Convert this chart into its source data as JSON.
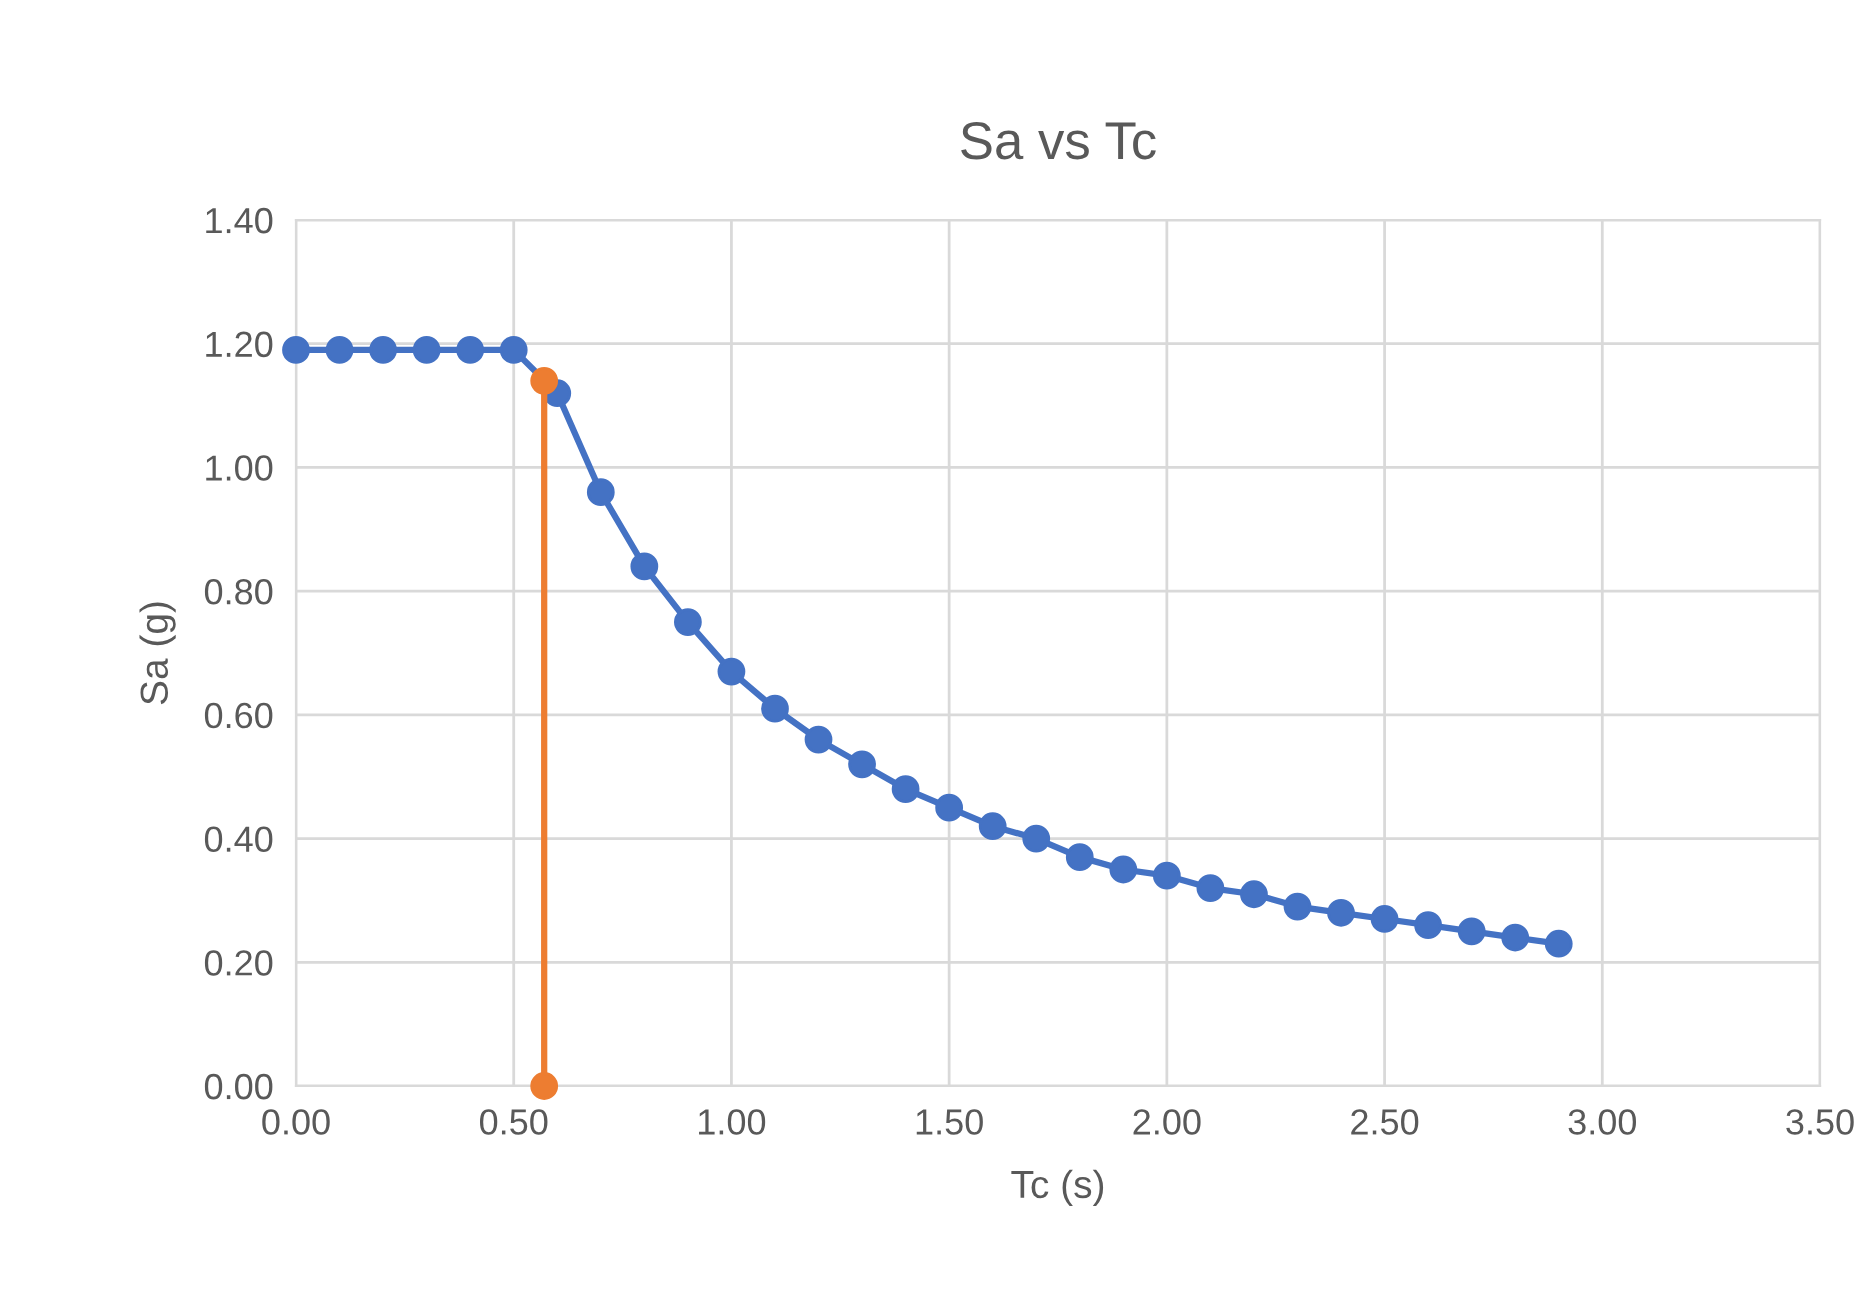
{
  "chart_data": {
    "type": "line",
    "title": "Sa vs Tc",
    "xlabel": "Tc (s)",
    "ylabel": "Sa (g)",
    "xlim": [
      0,
      3.5
    ],
    "xticks": [
      {
        "value": 0,
        "label": "0.00"
      },
      {
        "value": 0.5,
        "label": "0.50"
      },
      {
        "value": 1,
        "label": "1.00"
      },
      {
        "value": 1.5,
        "label": "1.50"
      },
      {
        "value": 2,
        "label": "2.00"
      },
      {
        "value": 2.5,
        "label": "2.50"
      },
      {
        "value": 3,
        "label": "3.00"
      },
      {
        "value": 3.5,
        "label": "3.50"
      }
    ],
    "ylim": [
      0,
      1.4
    ],
    "yticks": [
      {
        "value": 0,
        "label": "0.00"
      },
      {
        "value": 0.2,
        "label": "0.20"
      },
      {
        "value": 0.4,
        "label": "0.40"
      },
      {
        "value": 0.6,
        "label": "0.60"
      },
      {
        "value": 0.8,
        "label": "0.80"
      },
      {
        "value": 1,
        "label": "1.00"
      },
      {
        "value": 1.2,
        "label": "1.20"
      },
      {
        "value": 1.4,
        "label": "1.40"
      }
    ],
    "grid": true,
    "marker": "circle",
    "line_style": "solid",
    "series": [
      {
        "color": "#4472c4",
        "x": [
          0,
          0.1,
          0.2,
          0.3,
          0.4,
          0.5,
          0.6,
          0.7,
          0.8,
          0.9,
          1.0,
          1.1,
          1.2,
          1.3,
          1.4,
          1.5,
          1.6,
          1.7,
          1.8,
          1.9,
          2.0,
          2.1,
          2.2,
          2.3,
          2.4,
          2.5,
          2.6,
          2.7,
          2.8,
          2.9
        ],
        "values": [
          1.19,
          1.19,
          1.19,
          1.19,
          1.19,
          1.19,
          1.12,
          0.96,
          0.84,
          0.75,
          0.67,
          0.61,
          0.56,
          0.52,
          0.48,
          0.45,
          0.42,
          0.4,
          0.37,
          0.35,
          0.34,
          0.32,
          0.31,
          0.29,
          0.28,
          0.27,
          0.26,
          0.25,
          0.24,
          0.23
        ]
      },
      {
        "color": "#ed7d31",
        "x": [
          0.57,
          0.57
        ],
        "values": [
          1.14,
          0
        ]
      }
    ]
  }
}
